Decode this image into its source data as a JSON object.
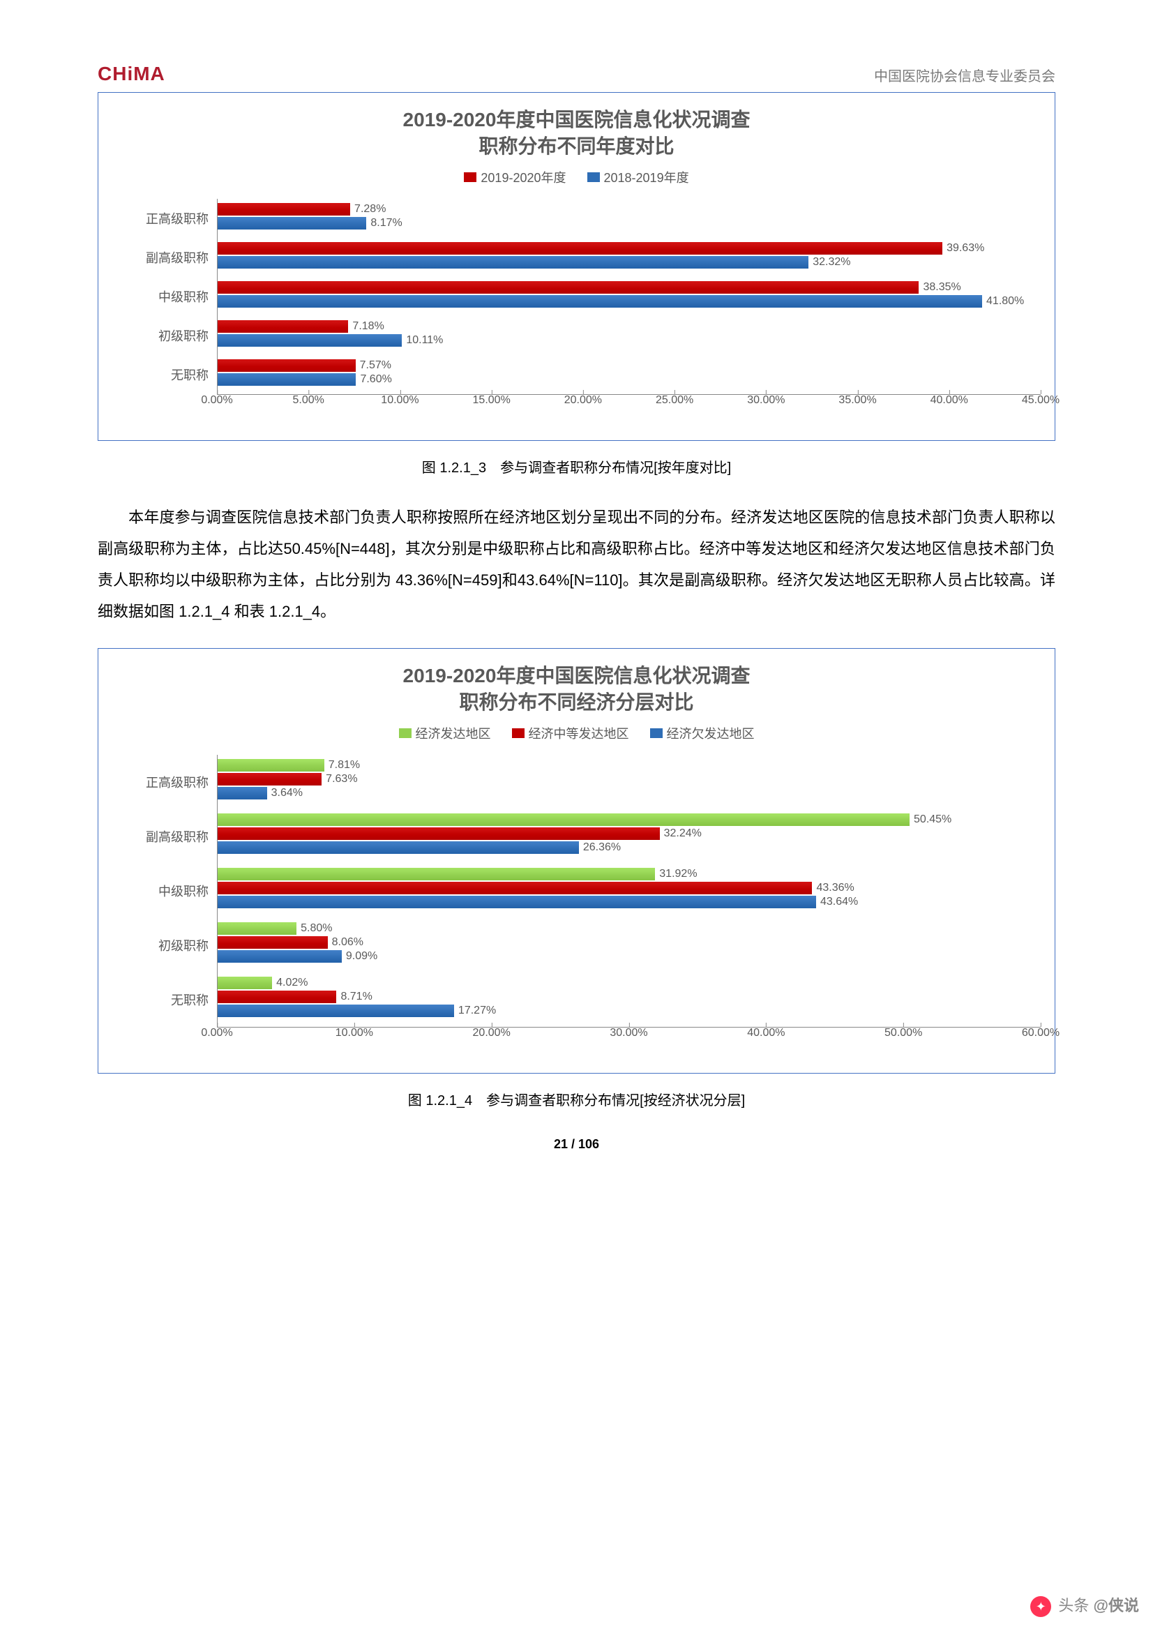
{
  "header": {
    "logo_text": "CHiMA",
    "org_name": "中国医院协会信息专业委员会"
  },
  "chart1": {
    "type": "horizontal-bar",
    "title_line1": "2019-2020年度中国医院信息化状况调查",
    "title_line2": "职称分布不同年度对比",
    "series": [
      {
        "label": "2019-2020年度",
        "color": "#c00000"
      },
      {
        "label": "2018-2019年度",
        "color": "#2e6db5"
      }
    ],
    "xmin": 0,
    "xmax": 45,
    "xtick_step": 5,
    "xtick_format_suffix": "%",
    "categories": [
      {
        "name": "正高级职称",
        "values": [
          7.28,
          8.17
        ]
      },
      {
        "name": "副高级职称",
        "values": [
          39.63,
          32.32
        ]
      },
      {
        "name": "中级职称",
        "values": [
          38.35,
          41.8
        ]
      },
      {
        "name": "初级职称",
        "values": [
          7.18,
          10.11
        ]
      },
      {
        "name": "无职称",
        "values": [
          7.57,
          7.6
        ]
      }
    ],
    "caption": "图 1.2.1_3　参与调查者职称分布情况[按年度对比]"
  },
  "body_paragraph": "本年度参与调查医院信息技术部门负责人职称按照所在经济地区划分呈现出不同的分布。经济发达地区医院的信息技术部门负责人职称以副高级职称为主体，占比达50.45%[N=448]，其次分别是中级职称占比和高级职称占比。经济中等发达地区和经济欠发达地区信息技术部门负责人职称均以中级职称为主体，占比分别为 43.36%[N=459]和43.64%[N=110]。其次是副高级职称。经济欠发达地区无职称人员占比较高。详细数据如图 1.2.1_4 和表 1.2.1_4。",
  "chart2": {
    "type": "horizontal-bar",
    "title_line1": "2019-2020年度中国医院信息化状况调查",
    "title_line2": "职称分布不同经济分层对比",
    "series": [
      {
        "label": "经济发达地区",
        "color": "#92d050"
      },
      {
        "label": "经济中等发达地区",
        "color": "#c00000"
      },
      {
        "label": "经济欠发达地区",
        "color": "#2e6db5"
      }
    ],
    "xmin": 0,
    "xmax": 60,
    "xtick_step": 10,
    "xtick_format_suffix": "%",
    "categories": [
      {
        "name": "正高级职称",
        "values": [
          7.81,
          7.63,
          3.64
        ]
      },
      {
        "name": "副高级职称",
        "values": [
          50.45,
          32.24,
          26.36
        ]
      },
      {
        "name": "中级职称",
        "values": [
          31.92,
          43.36,
          43.64
        ]
      },
      {
        "name": "初级职称",
        "values": [
          5.8,
          8.06,
          9.09
        ]
      },
      {
        "name": "无职称",
        "values": [
          4.02,
          8.71,
          17.27
        ]
      }
    ],
    "caption": "图 1.2.1_4　参与调查者职称分布情况[按经济状况分层]"
  },
  "page_number": "21 / 106",
  "watermark": {
    "prefix": "头条",
    "handle": "@侠说"
  }
}
